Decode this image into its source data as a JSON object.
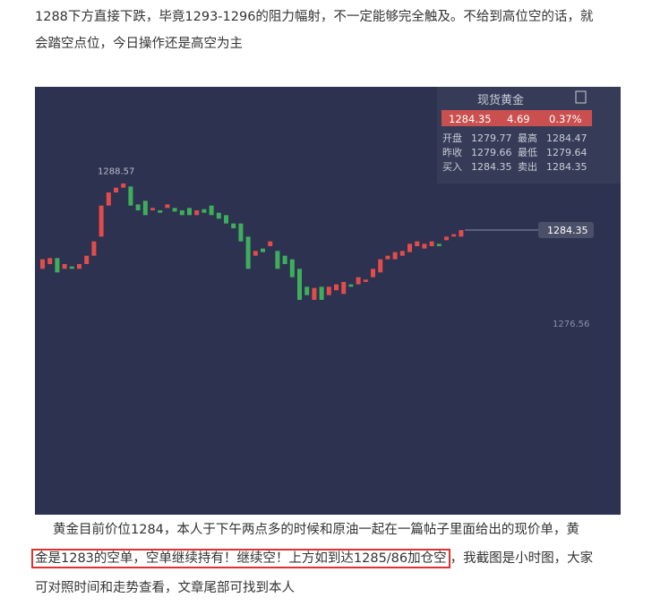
{
  "paragraph1": {
    "lines": [
      "1288下方直接下跌，毕竟1293-1296的阻力幅射，不一定能够完全触及。不给到高位空的话，就",
      "会踏空点位，今日操作还是高空为主"
    ]
  },
  "chart_data": {
    "type": "candlestick",
    "ylim": [
      1260.5,
      1296.35
    ],
    "open": [
      1281.1,
      1281.5,
      1282.0,
      1281.1,
      1281.3,
      1281.1,
      1281.5,
      1282.2,
      1283.8,
      1286.4,
      1287.5,
      1287.9,
      1288.0,
      1286.5,
      1286.8,
      1286.0,
      1286.0,
      1286.2,
      1286.2,
      1286.0,
      1286.2,
      1285.6,
      1286.1,
      1286.4,
      1285.8,
      1285.6,
      1284.9,
      1284.9,
      1283.8,
      1282.2,
      1282.8,
      1283.0,
      1282.6,
      1282.2,
      1281.9,
      1281.1,
      1279.6,
      1278.5,
      1279.6,
      1278.9,
      1279.3,
      1279.0,
      1279.8,
      1279.8,
      1280.0,
      1280.4,
      1280.8,
      1281.9,
      1281.9,
      1282.2,
      1282.5,
      1283.0,
      1282.8,
      1283.0,
      1283.2,
      1283.5,
      1283.8,
      1283.8
    ],
    "close": [
      1281.9,
      1282.0,
      1280.8,
      1281.5,
      1281.1,
      1281.5,
      1282.2,
      1283.4,
      1286.4,
      1287.5,
      1287.9,
      1288.25,
      1286.4,
      1286.0,
      1285.6,
      1286.2,
      1285.8,
      1286.5,
      1285.9,
      1285.6,
      1285.6,
      1286.0,
      1285.8,
      1285.6,
      1285.3,
      1284.9,
      1284.5,
      1283.4,
      1281.1,
      1282.6,
      1282.5,
      1283.4,
      1281.1,
      1281.5,
      1280.4,
      1278.5,
      1278.9,
      1279.5,
      1278.5,
      1279.6,
      1279.8,
      1280.0,
      1279.6,
      1280.4,
      1280.2,
      1281.1,
      1281.9,
      1282.2,
      1282.5,
      1282.6,
      1283.2,
      1283.4,
      1283.2,
      1283.4,
      1283.0,
      1283.8,
      1284.0,
      1284.35
    ],
    "high_label": 1288.57,
    "last_price": 1284.35,
    "low_label": 1276.56,
    "panel": {
      "title": "现货黄金",
      "price": "1284.35",
      "change": "4.69",
      "change_pct": "0.37%",
      "rows": [
        [
          "开盘",
          "1279.77",
          "最高",
          "1284.47"
        ],
        [
          "昨收",
          "1279.66",
          "最低",
          "1279.64"
        ],
        [
          "买入",
          "1284.35",
          "卖出",
          "1284.35"
        ]
      ]
    }
  },
  "paragraph2": {
    "line1": "黄金目前价位1284，本人于下午两点多的时候和原油一起在一篇帖子里面给出的现价单，黄",
    "line2_boxed": "金是1283的空单，空单继续持有！继续空！上方如到达1285/86加仓空",
    "line2_rest": "，我截图是小时图，大家",
    "line3": "可对照时间和走势查看，文章尾部可找到本人"
  }
}
